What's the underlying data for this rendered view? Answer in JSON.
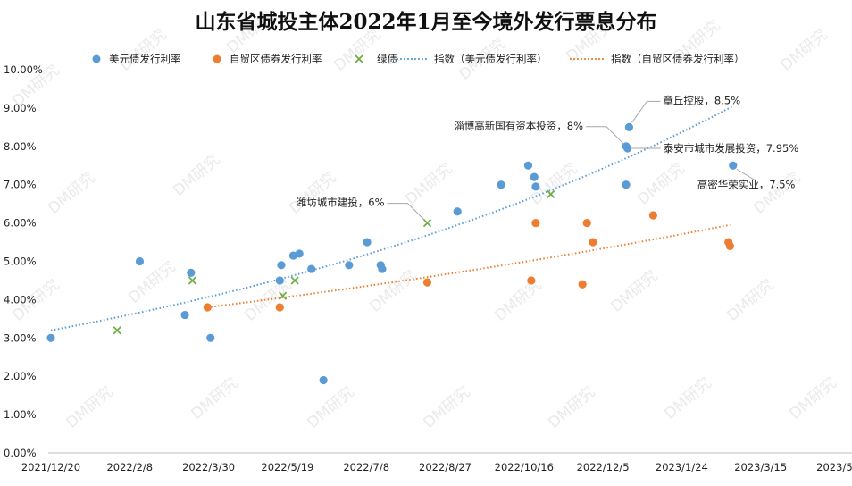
{
  "chart_data": {
    "type": "scatter",
    "title": "山东省城投主体2022年1月至今境外发行票息分布",
    "x_ticks": [
      "2021/12/20",
      "2022/2/8",
      "2022/3/30",
      "2022/5/19",
      "2022/7/8",
      "2022/8/27",
      "2022/10/16",
      "2022/12/5",
      "2023/1/24",
      "2023/3/15",
      "2023/5/4"
    ],
    "y_ticks": [
      "0.00%",
      "1.00%",
      "2.00%",
      "3.00%",
      "4.00%",
      "5.00%",
      "6.00%",
      "7.00%",
      "8.00%",
      "9.00%",
      "10.00%"
    ],
    "xlim": [
      "2021-12-20",
      "2023-05-04"
    ],
    "ylim": [
      0,
      10
    ],
    "y_unit": "%",
    "grid": false,
    "legend_position": "top",
    "series": [
      {
        "name": "美元债发行利率",
        "marker": "circle",
        "color": "#5B9BD5",
        "points": [
          [
            "2021-12-20",
            3.0
          ],
          [
            "2022-02-17",
            5.0
          ],
          [
            "2022-03-19",
            3.6
          ],
          [
            "2022-03-23",
            4.7
          ],
          [
            "2022-04-05",
            3.0
          ],
          [
            "2022-05-21",
            4.5
          ],
          [
            "2022-05-22",
            4.9
          ],
          [
            "2022-05-30",
            5.15
          ],
          [
            "2022-06-03",
            5.2
          ],
          [
            "2022-06-11",
            4.8
          ],
          [
            "2022-06-19",
            1.9
          ],
          [
            "2022-07-06",
            4.9
          ],
          [
            "2022-07-18",
            5.5
          ],
          [
            "2022-07-27",
            4.9
          ],
          [
            "2022-07-28",
            4.8
          ],
          [
            "2022-09-16",
            6.3
          ],
          [
            "2022-10-15",
            7.0
          ],
          [
            "2022-11-02",
            7.5
          ],
          [
            "2022-11-06",
            7.2
          ],
          [
            "2022-11-07",
            6.95
          ],
          [
            "2023-01-06",
            8.0
          ],
          [
            "2023-01-07",
            7.95
          ],
          [
            "2023-01-06",
            7.0
          ],
          [
            "2023-01-08",
            8.5
          ],
          [
            "2023-03-18",
            7.5
          ]
        ]
      },
      {
        "name": "自贸区债券发行利率",
        "marker": "circle",
        "color": "#ED7D31",
        "points": [
          [
            "2022-04-03",
            3.8
          ],
          [
            "2022-05-21",
            3.8
          ],
          [
            "2022-08-27",
            4.45
          ],
          [
            "2022-11-04",
            4.5
          ],
          [
            "2022-11-07",
            6.0
          ],
          [
            "2022-12-08",
            4.4
          ],
          [
            "2022-12-11",
            6.0
          ],
          [
            "2022-12-15",
            5.5
          ],
          [
            "2023-01-24",
            6.2
          ],
          [
            "2023-03-15",
            5.5
          ],
          [
            "2023-03-16",
            5.4
          ]
        ]
      },
      {
        "name": "绿债",
        "marker": "x",
        "color": "#70AD47",
        "points": [
          [
            "2022-02-02",
            3.2
          ],
          [
            "2022-03-24",
            4.5
          ],
          [
            "2022-05-23",
            4.1
          ],
          [
            "2022-05-31",
            4.5
          ],
          [
            "2022-08-27",
            6.0
          ],
          [
            "2022-11-17",
            6.75
          ]
        ]
      }
    ],
    "trendlines": [
      {
        "name": "指数（美元债发行利率）",
        "color": "#5B9BD5",
        "style": "dotted",
        "from": [
          "2021-12-20",
          3.2
        ],
        "to": [
          "2023-03-18",
          9.05
        ],
        "kind": "exponential"
      },
      {
        "name": "指数（自贸区债券发行利率）",
        "color": "#ED7D31",
        "style": "dotted",
        "from": [
          "2022-04-03",
          3.8
        ],
        "to": [
          "2023-03-16",
          5.95
        ],
        "kind": "exponential"
      }
    ],
    "annotations": [
      {
        "text": "章丘控股，8.5%",
        "x": "2023-01-08",
        "y": 8.5,
        "position": "above-right"
      },
      {
        "text": "淄博高新国有资本投资，8%",
        "x": "2023-01-06",
        "y": 8.0,
        "position": "upper-left"
      },
      {
        "text": "泰安市城市发展投资，7.95%",
        "x": "2023-01-07",
        "y": 7.95,
        "position": "right"
      },
      {
        "text": "潍坊城市建投，6%",
        "x": "2022-08-27",
        "y": 6.0,
        "position": "upper-left"
      },
      {
        "text": "高密华荣实业，7.5%",
        "x": "2023-03-18",
        "y": 7.5,
        "position": "lower-right"
      }
    ],
    "watermark": "DM研究"
  }
}
